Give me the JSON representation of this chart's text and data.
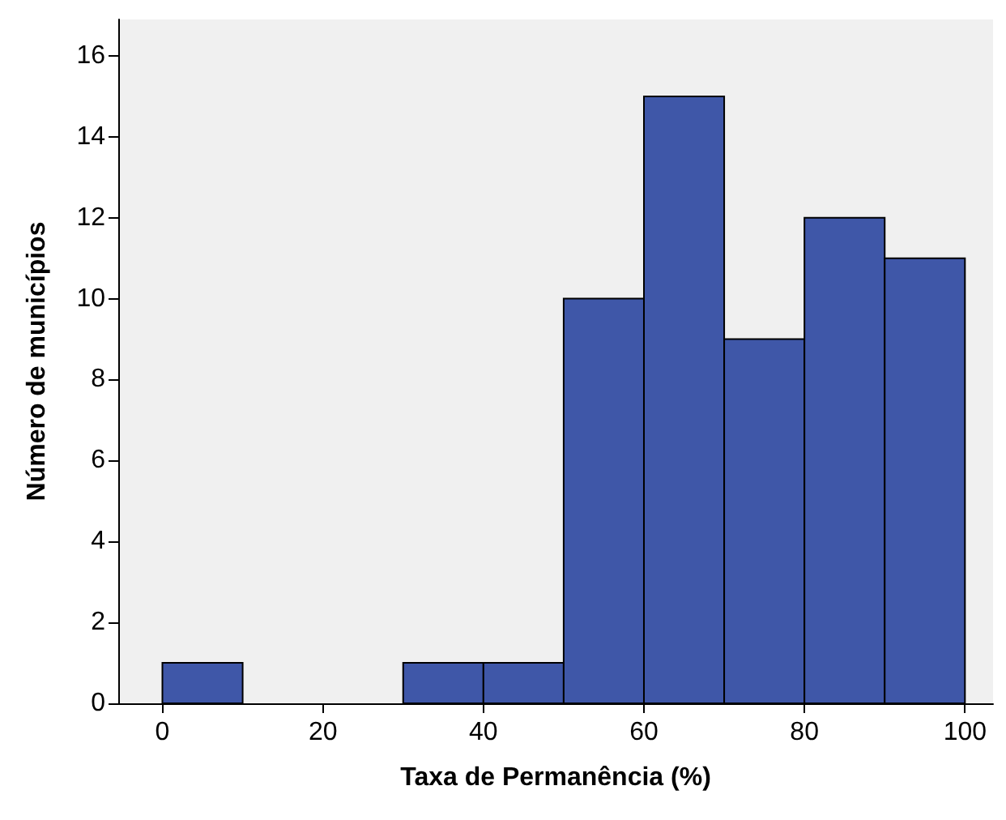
{
  "chart_data": {
    "type": "histogram",
    "xlabel": "Taxa de Permanência (%)",
    "ylabel": "Número de municípios",
    "bins": [
      0,
      10,
      20,
      30,
      40,
      50,
      60,
      70,
      80,
      90,
      100
    ],
    "values": [
      1,
      0,
      0,
      1,
      1,
      10,
      15,
      9,
      12,
      11
    ],
    "color": "#3f57a8",
    "xlim": [
      -5.5,
      103.5
    ],
    "xticks": [
      0,
      20,
      40,
      60,
      80,
      100
    ],
    "ylim": [
      0,
      16.9
    ],
    "yticks": [
      0,
      2,
      4,
      6,
      8,
      10,
      12,
      14,
      16
    ],
    "grid": false
  }
}
